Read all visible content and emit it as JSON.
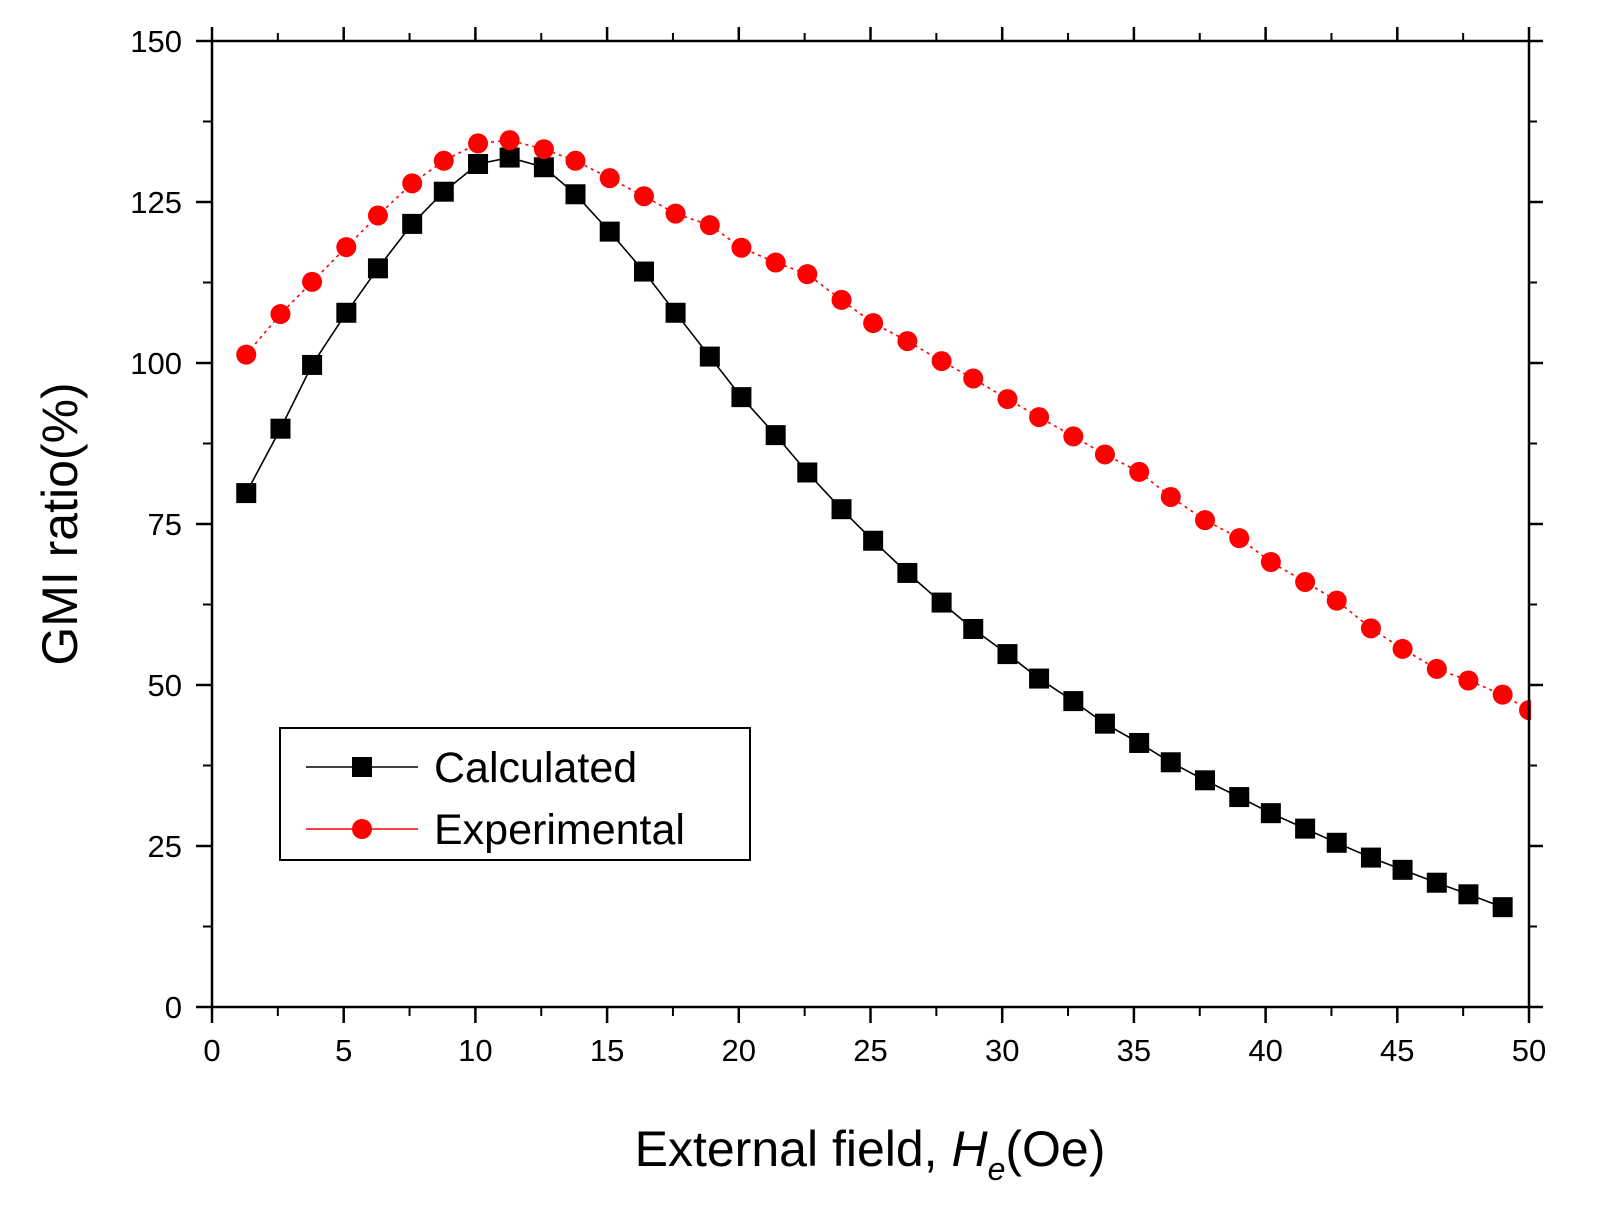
{
  "chart_data": {
    "type": "line",
    "xlabel_main": "External field, ",
    "xlabel_var": "H",
    "xlabel_sub": "e",
    "xlabel_unit": "(Oe)",
    "ylabel": "GMI ratio(%)",
    "xlim": [
      0,
      50
    ],
    "ylim": [
      0,
      150
    ],
    "xticks": [
      0,
      5,
      10,
      15,
      20,
      25,
      30,
      35,
      40,
      45,
      50
    ],
    "yticks": [
      0,
      25,
      50,
      75,
      100,
      125,
      150
    ],
    "legend_position": "lower-left",
    "grid": false,
    "series": [
      {
        "name": "Calculated",
        "color": "#000000",
        "marker": "square",
        "line": "solid",
        "x": [
          1.3,
          2.6,
          3.8,
          5.1,
          6.3,
          7.6,
          8.8,
          10.1,
          11.3,
          12.6,
          13.8,
          15.1,
          16.4,
          17.6,
          18.9,
          20.1,
          21.4,
          22.6,
          23.9,
          25.1,
          26.4,
          27.7,
          28.9,
          30.2,
          31.4,
          32.7,
          33.9,
          35.2,
          36.4,
          37.7,
          39.0,
          40.2,
          41.5,
          42.7,
          44.0,
          45.2,
          46.5,
          47.7,
          49.0
        ],
        "y": [
          79.8,
          89.8,
          99.7,
          107.8,
          114.7,
          121.6,
          126.6,
          130.9,
          131.9,
          130.4,
          126.2,
          120.4,
          114.2,
          107.8,
          101.0,
          94.7,
          88.8,
          83.0,
          77.3,
          72.4,
          67.4,
          62.8,
          58.7,
          54.8,
          51.0,
          47.5,
          44.0,
          41.0,
          38.0,
          35.2,
          32.6,
          30.1,
          27.7,
          25.5,
          23.2,
          21.3,
          19.3,
          17.5,
          15.5
        ]
      },
      {
        "name": "Experimental",
        "color": "#ff0000",
        "marker": "circle",
        "line": "dotted",
        "x": [
          1.3,
          2.6,
          3.8,
          5.1,
          6.3,
          7.6,
          8.8,
          10.1,
          11.3,
          12.6,
          13.8,
          15.1,
          16.4,
          17.6,
          18.9,
          20.1,
          21.4,
          22.6,
          23.9,
          25.1,
          26.4,
          27.7,
          28.9,
          30.2,
          31.4,
          32.7,
          33.9,
          35.2,
          36.4,
          37.7,
          39.0,
          40.2,
          41.5,
          42.7,
          44.0,
          45.2,
          46.5,
          47.7,
          49.0,
          50.0
        ],
        "y": [
          101.3,
          107.6,
          112.6,
          118.0,
          122.9,
          127.9,
          131.4,
          134.1,
          134.6,
          133.2,
          131.4,
          128.7,
          125.9,
          123.2,
          121.4,
          117.9,
          115.6,
          113.8,
          109.8,
          106.2,
          103.4,
          100.3,
          97.6,
          94.4,
          91.6,
          88.6,
          85.8,
          83.1,
          79.2,
          75.6,
          72.8,
          69.1,
          66.0,
          63.1,
          58.8,
          55.6,
          52.5,
          50.7,
          48.5,
          46.1
        ]
      }
    ]
  }
}
